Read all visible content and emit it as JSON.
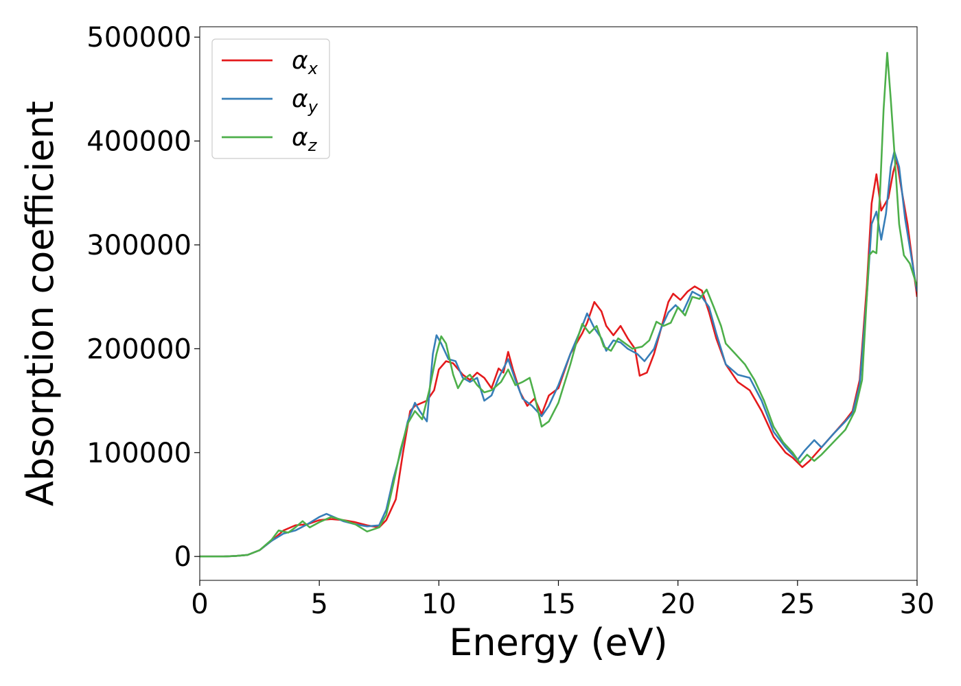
{
  "chart_data": {
    "type": "line",
    "title": "",
    "xlabel": "Energy (eV)",
    "ylabel": "Absorption coefficient",
    "xlim": [
      0,
      30
    ],
    "ylim": [
      -23000,
      510000
    ],
    "xticks": [
      0,
      5,
      10,
      15,
      20,
      25,
      30
    ],
    "xtick_labels": [
      "0",
      "5",
      "10",
      "15",
      "20",
      "25",
      "30"
    ],
    "yticks": [
      0,
      100000,
      200000,
      300000,
      400000,
      500000
    ],
    "ytick_labels": [
      "0",
      "100000",
      "200000",
      "300000",
      "400000",
      "500000"
    ],
    "grid": false,
    "legend_position": "top-left",
    "legend": [
      {
        "base": "α",
        "sub": "x"
      },
      {
        "base": "α",
        "sub": "y"
      },
      {
        "base": "α",
        "sub": "z"
      }
    ],
    "series": [
      {
        "color": "#e41a1c",
        "points": [
          [
            0,
            0
          ],
          [
            1,
            0
          ],
          [
            1.5,
            500
          ],
          [
            2,
            1500
          ],
          [
            2.5,
            6000
          ],
          [
            3,
            15000
          ],
          [
            3.5,
            25000
          ],
          [
            3.7,
            27000
          ],
          [
            4,
            30000
          ],
          [
            4.5,
            31000
          ],
          [
            5,
            35000
          ],
          [
            5.5,
            36000
          ],
          [
            6,
            35000
          ],
          [
            6.5,
            33000
          ],
          [
            7,
            30000
          ],
          [
            7.5,
            28000
          ],
          [
            7.8,
            35000
          ],
          [
            8.2,
            55000
          ],
          [
            8.5,
            100000
          ],
          [
            8.8,
            140000
          ],
          [
            9,
            145000
          ],
          [
            9.3,
            148000
          ],
          [
            9.5,
            150000
          ],
          [
            9.8,
            160000
          ],
          [
            10,
            180000
          ],
          [
            10.3,
            188000
          ],
          [
            10.6,
            186000
          ],
          [
            11,
            175000
          ],
          [
            11.3,
            170000
          ],
          [
            11.6,
            177000
          ],
          [
            11.9,
            172000
          ],
          [
            12.2,
            162000
          ],
          [
            12.5,
            181000
          ],
          [
            12.7,
            177000
          ],
          [
            12.9,
            197000
          ],
          [
            13.1,
            180000
          ],
          [
            13.4,
            158000
          ],
          [
            13.7,
            145000
          ],
          [
            14,
            152000
          ],
          [
            14.3,
            137000
          ],
          [
            14.6,
            155000
          ],
          [
            15,
            162000
          ],
          [
            15.5,
            195000
          ],
          [
            16,
            215000
          ],
          [
            16.2,
            225000
          ],
          [
            16.5,
            245000
          ],
          [
            16.8,
            236000
          ],
          [
            17,
            222000
          ],
          [
            17.3,
            213000
          ],
          [
            17.6,
            222000
          ],
          [
            17.9,
            210000
          ],
          [
            18.2,
            200000
          ],
          [
            18.4,
            174000
          ],
          [
            18.7,
            177000
          ],
          [
            19,
            195000
          ],
          [
            19.3,
            220000
          ],
          [
            19.6,
            245000
          ],
          [
            19.8,
            253000
          ],
          [
            20.1,
            247000
          ],
          [
            20.4,
            255000
          ],
          [
            20.7,
            260000
          ],
          [
            21,
            256000
          ],
          [
            21.3,
            235000
          ],
          [
            21.6,
            210000
          ],
          [
            22,
            185000
          ],
          [
            22.5,
            168000
          ],
          [
            23,
            160000
          ],
          [
            23.5,
            140000
          ],
          [
            24,
            115000
          ],
          [
            24.5,
            100000
          ],
          [
            24.8,
            95000
          ],
          [
            25.2,
            86000
          ],
          [
            25.5,
            92000
          ],
          [
            26,
            105000
          ],
          [
            26.5,
            118000
          ],
          [
            27,
            131000
          ],
          [
            27.3,
            140000
          ],
          [
            27.6,
            170000
          ],
          [
            27.9,
            260000
          ],
          [
            28.1,
            340000
          ],
          [
            28.3,
            368000
          ],
          [
            28.5,
            333000
          ],
          [
            28.8,
            345000
          ],
          [
            29,
            370000
          ],
          [
            29.15,
            382000
          ],
          [
            29.3,
            360000
          ],
          [
            29.6,
            320000
          ],
          [
            30,
            250000
          ]
        ]
      },
      {
        "color": "#377eb8",
        "points": [
          [
            0,
            0
          ],
          [
            1,
            0
          ],
          [
            1.5,
            500
          ],
          [
            2,
            1500
          ],
          [
            2.5,
            6000
          ],
          [
            3,
            15000
          ],
          [
            3.5,
            22000
          ],
          [
            4,
            25000
          ],
          [
            4.5,
            31000
          ],
          [
            5,
            38000
          ],
          [
            5.3,
            41000
          ],
          [
            5.6,
            38000
          ],
          [
            6,
            34000
          ],
          [
            6.5,
            31000
          ],
          [
            7,
            29000
          ],
          [
            7.5,
            30000
          ],
          [
            7.8,
            45000
          ],
          [
            8.1,
            75000
          ],
          [
            8.4,
            100000
          ],
          [
            8.7,
            130000
          ],
          [
            9,
            148000
          ],
          [
            9.2,
            140000
          ],
          [
            9.5,
            130000
          ],
          [
            9.75,
            195000
          ],
          [
            9.9,
            213000
          ],
          [
            10.1,
            205000
          ],
          [
            10.4,
            190000
          ],
          [
            10.7,
            188000
          ],
          [
            11,
            172000
          ],
          [
            11.3,
            168000
          ],
          [
            11.6,
            172000
          ],
          [
            11.9,
            150000
          ],
          [
            12.2,
            155000
          ],
          [
            12.5,
            172000
          ],
          [
            12.9,
            190000
          ],
          [
            13.2,
            170000
          ],
          [
            13.5,
            152000
          ],
          [
            13.9,
            145000
          ],
          [
            14.3,
            135000
          ],
          [
            14.6,
            145000
          ],
          [
            15,
            165000
          ],
          [
            15.5,
            195000
          ],
          [
            16,
            222000
          ],
          [
            16.2,
            234000
          ],
          [
            16.5,
            220000
          ],
          [
            16.8,
            210000
          ],
          [
            17,
            198000
          ],
          [
            17.3,
            208000
          ],
          [
            17.6,
            206000
          ],
          [
            17.9,
            200000
          ],
          [
            18.3,
            195000
          ],
          [
            18.6,
            188000
          ],
          [
            19,
            200000
          ],
          [
            19.3,
            220000
          ],
          [
            19.6,
            235000
          ],
          [
            19.9,
            242000
          ],
          [
            20.2,
            235000
          ],
          [
            20.6,
            255000
          ],
          [
            21,
            250000
          ],
          [
            21.3,
            240000
          ],
          [
            21.6,
            215000
          ],
          [
            22,
            185000
          ],
          [
            22.5,
            175000
          ],
          [
            23,
            172000
          ],
          [
            23.5,
            150000
          ],
          [
            24,
            120000
          ],
          [
            24.5,
            105000
          ],
          [
            25,
            93000
          ],
          [
            25.3,
            102000
          ],
          [
            25.7,
            112000
          ],
          [
            26,
            105000
          ],
          [
            26.5,
            118000
          ],
          [
            27,
            130000
          ],
          [
            27.3,
            138000
          ],
          [
            27.6,
            165000
          ],
          [
            27.9,
            250000
          ],
          [
            28.1,
            320000
          ],
          [
            28.3,
            332000
          ],
          [
            28.5,
            305000
          ],
          [
            28.7,
            330000
          ],
          [
            28.9,
            375000
          ],
          [
            29.05,
            390000
          ],
          [
            29.25,
            375000
          ],
          [
            29.5,
            325000
          ],
          [
            30,
            255000
          ]
        ]
      },
      {
        "color": "#4daf4a",
        "points": [
          [
            0,
            0
          ],
          [
            1,
            0
          ],
          [
            1.5,
            500
          ],
          [
            2,
            1500
          ],
          [
            2.5,
            6000
          ],
          [
            3,
            16000
          ],
          [
            3.3,
            25000
          ],
          [
            3.7,
            23000
          ],
          [
            4,
            28000
          ],
          [
            4.3,
            34000
          ],
          [
            4.6,
            28000
          ],
          [
            5,
            33000
          ],
          [
            5.5,
            38000
          ],
          [
            6,
            35000
          ],
          [
            6.5,
            31000
          ],
          [
            7,
            24000
          ],
          [
            7.5,
            28000
          ],
          [
            7.8,
            40000
          ],
          [
            8.1,
            70000
          ],
          [
            8.4,
            103000
          ],
          [
            8.7,
            128000
          ],
          [
            9,
            140000
          ],
          [
            9.3,
            132000
          ],
          [
            9.6,
            160000
          ],
          [
            9.9,
            195000
          ],
          [
            10.1,
            212000
          ],
          [
            10.3,
            205000
          ],
          [
            10.6,
            175000
          ],
          [
            10.8,
            162000
          ],
          [
            11,
            170000
          ],
          [
            11.3,
            175000
          ],
          [
            11.6,
            165000
          ],
          [
            11.9,
            158000
          ],
          [
            12.2,
            160000
          ],
          [
            12.6,
            168000
          ],
          [
            12.9,
            180000
          ],
          [
            13.2,
            165000
          ],
          [
            13.5,
            168000
          ],
          [
            13.8,
            172000
          ],
          [
            14,
            155000
          ],
          [
            14.3,
            125000
          ],
          [
            14.6,
            130000
          ],
          [
            15,
            148000
          ],
          [
            15.5,
            185000
          ],
          [
            15.8,
            210000
          ],
          [
            16,
            224000
          ],
          [
            16.3,
            215000
          ],
          [
            16.6,
            222000
          ],
          [
            16.9,
            202000
          ],
          [
            17.2,
            198000
          ],
          [
            17.5,
            210000
          ],
          [
            17.8,
            205000
          ],
          [
            18.1,
            200000
          ],
          [
            18.5,
            202000
          ],
          [
            18.8,
            208000
          ],
          [
            19.1,
            226000
          ],
          [
            19.4,
            222000
          ],
          [
            19.7,
            225000
          ],
          [
            20,
            240000
          ],
          [
            20.3,
            232000
          ],
          [
            20.6,
            250000
          ],
          [
            20.9,
            248000
          ],
          [
            21.2,
            257000
          ],
          [
            21.5,
            240000
          ],
          [
            21.8,
            222000
          ],
          [
            22,
            205000
          ],
          [
            22.4,
            195000
          ],
          [
            22.8,
            185000
          ],
          [
            23.2,
            170000
          ],
          [
            23.6,
            150000
          ],
          [
            24,
            125000
          ],
          [
            24.4,
            110000
          ],
          [
            24.8,
            100000
          ],
          [
            25.1,
            90000
          ],
          [
            25.4,
            98000
          ],
          [
            25.7,
            92000
          ],
          [
            26,
            98000
          ],
          [
            26.5,
            110000
          ],
          [
            27,
            122000
          ],
          [
            27.4,
            140000
          ],
          [
            27.7,
            170000
          ],
          [
            27.9,
            250000
          ],
          [
            28,
            290000
          ],
          [
            28.15,
            294000
          ],
          [
            28.3,
            292000
          ],
          [
            28.45,
            350000
          ],
          [
            28.6,
            430000
          ],
          [
            28.75,
            485000
          ],
          [
            28.9,
            440000
          ],
          [
            29.05,
            390000
          ],
          [
            29.25,
            320000
          ],
          [
            29.45,
            290000
          ],
          [
            29.7,
            282000
          ],
          [
            30,
            260000
          ]
        ]
      }
    ]
  }
}
